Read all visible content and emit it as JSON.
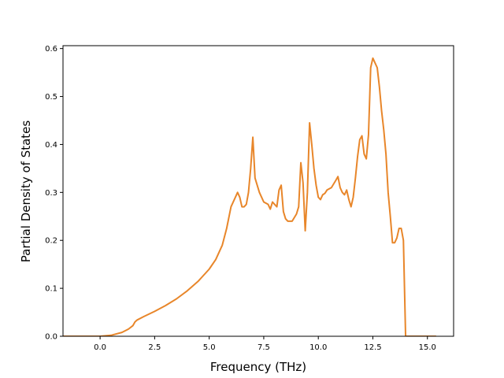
{
  "chart_data": {
    "type": "line",
    "title": "",
    "xlabel": "Frequency (THz)",
    "ylabel": "Partial Density of States",
    "xlim": [
      -1.7,
      16.2
    ],
    "ylim": [
      0.0,
      0.606
    ],
    "grid": false,
    "xticks": [
      0.0,
      2.5,
      5.0,
      7.5,
      10.0,
      12.5,
      15.0
    ],
    "xtick_labels": [
      "0.0",
      "2.5",
      "5.0",
      "7.5",
      "10.0",
      "12.5",
      "15.0"
    ],
    "yticks": [
      0.0,
      0.1,
      0.2,
      0.3,
      0.4,
      0.5,
      0.6
    ],
    "ytick_labels": [
      "0.0",
      "0.1",
      "0.2",
      "0.3",
      "0.4",
      "0.5",
      "0.6"
    ],
    "series": [
      {
        "color": "#e8862a",
        "x": [
          -2.4,
          -1.0,
          0.0,
          0.5,
          1.0,
          1.3,
          1.5,
          1.6,
          1.7,
          2.0,
          2.5,
          3.0,
          3.5,
          4.0,
          4.5,
          5.0,
          5.3,
          5.6,
          5.8,
          6.0,
          6.2,
          6.3,
          6.4,
          6.5,
          6.6,
          6.7,
          6.8,
          6.9,
          7.0,
          7.1,
          7.3,
          7.5,
          7.7,
          7.8,
          7.9,
          8.0,
          8.1,
          8.2,
          8.3,
          8.4,
          8.5,
          8.6,
          8.8,
          9.0,
          9.1,
          9.2,
          9.3,
          9.4,
          9.5,
          9.6,
          9.7,
          9.8,
          9.9,
          10.0,
          10.1,
          10.2,
          10.3,
          10.4,
          10.6,
          10.8,
          10.9,
          11.0,
          11.1,
          11.2,
          11.3,
          11.4,
          11.5,
          11.6,
          11.7,
          11.8,
          11.9,
          12.0,
          12.1,
          12.2,
          12.3,
          12.4,
          12.5,
          12.6,
          12.7,
          12.8,
          12.9,
          13.0,
          13.1,
          13.2,
          13.3,
          13.4,
          13.5,
          13.6,
          13.7,
          13.8,
          13.9,
          14.0,
          14.1,
          15.4
        ],
        "y": [
          0.0,
          0.0,
          0.0,
          0.002,
          0.008,
          0.015,
          0.022,
          0.03,
          0.034,
          0.041,
          0.052,
          0.064,
          0.078,
          0.095,
          0.115,
          0.14,
          0.16,
          0.19,
          0.225,
          0.27,
          0.29,
          0.3,
          0.29,
          0.27,
          0.27,
          0.275,
          0.3,
          0.35,
          0.415,
          0.33,
          0.3,
          0.28,
          0.275,
          0.265,
          0.28,
          0.275,
          0.27,
          0.305,
          0.315,
          0.26,
          0.245,
          0.24,
          0.24,
          0.255,
          0.27,
          0.362,
          0.32,
          0.22,
          0.3,
          0.445,
          0.4,
          0.35,
          0.315,
          0.29,
          0.285,
          0.295,
          0.298,
          0.305,
          0.31,
          0.325,
          0.333,
          0.31,
          0.3,
          0.295,
          0.305,
          0.285,
          0.27,
          0.29,
          0.33,
          0.375,
          0.41,
          0.418,
          0.38,
          0.37,
          0.42,
          0.56,
          0.58,
          0.57,
          0.56,
          0.52,
          0.47,
          0.43,
          0.38,
          0.3,
          0.25,
          0.195,
          0.195,
          0.205,
          0.225,
          0.225,
          0.2,
          0.0,
          0.0,
          0.0
        ]
      }
    ]
  }
}
